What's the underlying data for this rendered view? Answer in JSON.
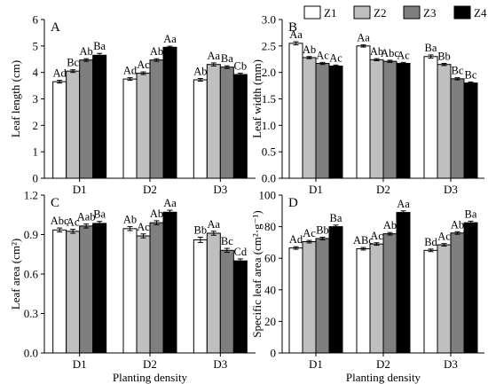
{
  "legend": [
    "Z1",
    "Z2",
    "Z3",
    "Z4"
  ],
  "legend_colors": [
    "#ffffff",
    "#bfbfbf",
    "#7f7f7f",
    "#000000"
  ],
  "chart_data": [
    {
      "panel": "A",
      "type": "bar",
      "categories": [
        "D1",
        "D2",
        "D3"
      ],
      "ylabel": "Leaf length (cm)",
      "xlabel": "",
      "ylim": [
        0,
        6
      ],
      "yticks": [
        "0",
        "1",
        "2",
        "3",
        "4",
        "5",
        "6"
      ],
      "series": [
        {
          "name": "Z1",
          "values": [
            3.65,
            3.75,
            3.72
          ],
          "errors": [
            0.05,
            0.05,
            0.05
          ],
          "labels": [
            "Ad",
            "Ad",
            "Ab"
          ]
        },
        {
          "name": "Z2",
          "values": [
            4.05,
            3.97,
            4.3
          ],
          "errors": [
            0.05,
            0.05,
            0.06
          ],
          "labels": [
            "Bc",
            "Ac",
            "Aa"
          ]
        },
        {
          "name": "Z3",
          "values": [
            4.47,
            4.47,
            4.2
          ],
          "errors": [
            0.05,
            0.05,
            0.05
          ],
          "labels": [
            "Ab",
            "Ab",
            "Ba"
          ]
        },
        {
          "name": "Z4",
          "values": [
            4.65,
            4.95,
            3.92
          ],
          "errors": [
            0.07,
            0.04,
            0.05
          ],
          "labels": [
            "Ba",
            "Aa",
            "Cb"
          ]
        }
      ]
    },
    {
      "panel": "B",
      "type": "bar",
      "categories": [
        "D1",
        "D2",
        "D3"
      ],
      "ylabel": "Leaf width (mm)",
      "xlabel": "",
      "ylim": [
        0,
        3
      ],
      "yticks": [
        "0.0",
        "0.5",
        "1.0",
        "1.5",
        "2.0",
        "2.5",
        "3.0"
      ],
      "series": [
        {
          "name": "Z1",
          "values": [
            2.55,
            2.5,
            2.3
          ],
          "errors": [
            0.03,
            0.02,
            0.03
          ],
          "labels": [
            "Aa",
            "Aa",
            "Ba"
          ]
        },
        {
          "name": "Z2",
          "values": [
            2.28,
            2.24,
            2.15
          ],
          "errors": [
            0.02,
            0.02,
            0.02
          ],
          "labels": [
            "Ab",
            "Ab",
            "Bb"
          ]
        },
        {
          "name": "Z3",
          "values": [
            2.17,
            2.21,
            1.88
          ],
          "errors": [
            0.02,
            0.02,
            0.02
          ],
          "labels": [
            "Ac",
            "Abc",
            "Bc"
          ]
        },
        {
          "name": "Z4",
          "values": [
            2.12,
            2.17,
            1.8
          ],
          "errors": [
            0.02,
            0.02,
            0.02
          ],
          "labels": [
            "Ac",
            "Ac",
            "Bc"
          ]
        }
      ]
    },
    {
      "panel": "C",
      "type": "bar",
      "categories": [
        "D1",
        "D2",
        "D3"
      ],
      "ylabel": "Leaf area (cm²)",
      "xlabel": "Planting density",
      "ylim": [
        0,
        1.2
      ],
      "yticks": [
        "0.0",
        "0.3",
        "0.6",
        "0.9",
        "1.2"
      ],
      "series": [
        {
          "name": "Z1",
          "values": [
            0.935,
            0.945,
            0.86
          ],
          "errors": [
            0.015,
            0.015,
            0.02
          ],
          "labels": [
            "Abc",
            "Ab",
            "Bb"
          ]
        },
        {
          "name": "Z2",
          "values": [
            0.925,
            0.89,
            0.91
          ],
          "errors": [
            0.015,
            0.015,
            0.015
          ],
          "labels": [
            "Ac",
            "Ac",
            "Aa"
          ]
        },
        {
          "name": "Z3",
          "values": [
            0.965,
            0.99,
            0.78
          ],
          "errors": [
            0.015,
            0.015,
            0.015
          ],
          "labels": [
            "Aab",
            "Ab",
            "Bc"
          ]
        },
        {
          "name": "Z4",
          "values": [
            0.985,
            1.07,
            0.7
          ],
          "errors": [
            0.015,
            0.015,
            0.015
          ],
          "labels": [
            "Ba",
            "Aa",
            "Cd"
          ]
        }
      ]
    },
    {
      "panel": "D",
      "type": "bar",
      "categories": [
        "D1",
        "D2",
        "D3"
      ],
      "ylabel": "Specific leaf area (cm²·g⁻¹)",
      "xlabel": "Planting density",
      "ylim": [
        0,
        100
      ],
      "yticks": [
        "0",
        "20",
        "40",
        "60",
        "80",
        "100"
      ],
      "series": [
        {
          "name": "Z1",
          "values": [
            66.5,
            66,
            65
          ],
          "errors": [
            0.8,
            0.8,
            0.8
          ],
          "labels": [
            "Ad",
            "ABc",
            "Bd"
          ]
        },
        {
          "name": "Z2",
          "values": [
            70.5,
            69,
            68.5
          ],
          "errors": [
            0.8,
            0.8,
            0.8
          ],
          "labels": [
            "Ac",
            "Ac",
            "Ac"
          ]
        },
        {
          "name": "Z3",
          "values": [
            72.5,
            75.5,
            76
          ],
          "errors": [
            0.8,
            0.8,
            0.8
          ],
          "labels": [
            "Bb",
            "Ab",
            "Ab"
          ]
        },
        {
          "name": "Z4",
          "values": [
            80,
            89,
            82.5
          ],
          "errors": [
            1,
            1,
            1
          ],
          "labels": [
            "Ba",
            "Aa",
            "Ba"
          ]
        }
      ]
    }
  ]
}
